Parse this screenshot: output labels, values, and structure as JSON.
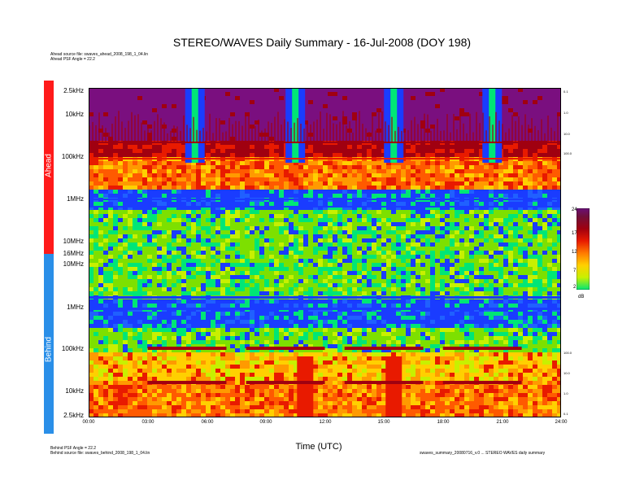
{
  "title": "STEREO/WAVES Daily Summary - 16-Jul-2008 (DOY 198)",
  "header_notes": {
    "ahead_source": "Ahead source file: swaves_ahead_2008_198_1_04.lin",
    "ahead_psf": "Ahead PSF Angle = 22.2"
  },
  "footer_notes": {
    "behind_psf": "Behind PSF Angle = 22.2",
    "behind_source": "Behind source file: swaves_behind_2008_198_1_04.lin",
    "right_note": "swaves_summary_20080716_v.0 ... STEREO WAVES daily summary"
  },
  "bands": {
    "ahead": "Ahead",
    "behind": "Behind"
  },
  "colors": {
    "ahead_band": "#ff1a1a",
    "behind_band": "#2a8fe8",
    "background": "#7a0f7f"
  },
  "chart_data": {
    "type": "heatmap",
    "xlabel": "Time (UTC)",
    "x_ticks": [
      "00:00",
      "03:00",
      "06:00",
      "09:00",
      "12:00",
      "15:00",
      "18:00",
      "21:00",
      "24:00"
    ],
    "xlim_hours": [
      0,
      24
    ],
    "ahead_y_ticks": [
      "2.5kHz",
      "10kHz",
      "100kHz",
      "1MHz",
      "10MHz",
      "16MHz"
    ],
    "behind_y_ticks": [
      "10MHz",
      "1MHz",
      "100kHz",
      "10kHz",
      "2.5kHz"
    ],
    "colorbar": {
      "unit": "dB",
      "ticks": [
        "24",
        "17",
        "12",
        "7",
        "2"
      ],
      "range": [
        2,
        24
      ]
    },
    "ahead_burst_hours": [
      5.4,
      10.5,
      15.5,
      20.5
    ],
    "behind_burst_hours": [
      11.0,
      15.5
    ],
    "right_scale_ahead": [
      "0.1",
      "1.0",
      "10.0",
      "100.0"
    ],
    "right_scale_behind": [
      "100.0",
      "10.0",
      "1.0",
      "0.1"
    ]
  }
}
